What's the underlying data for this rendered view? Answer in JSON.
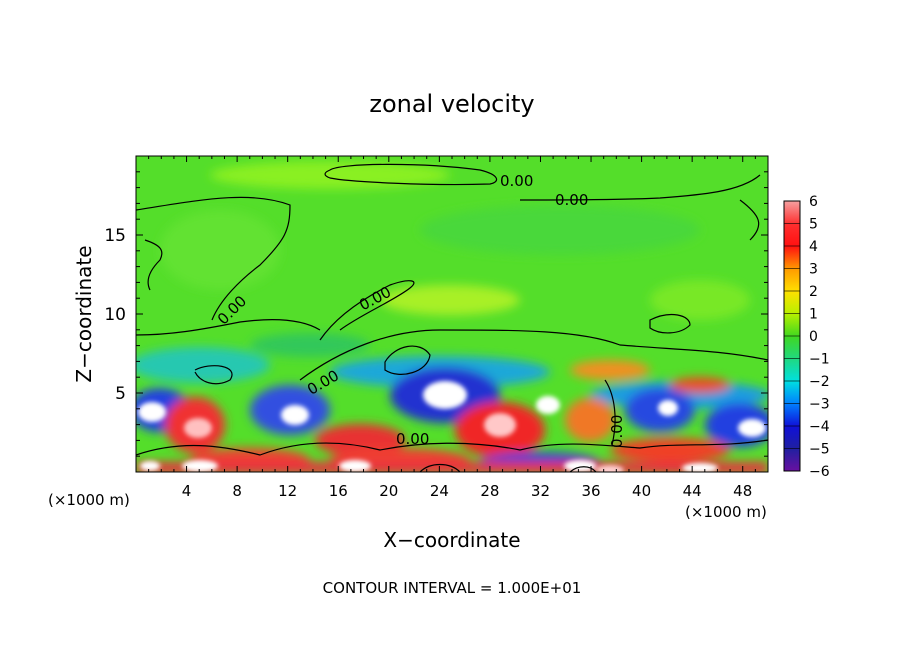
{
  "chart_data": {
    "type": "heatmap",
    "title": "zonal velocity",
    "xlabel": "X−coordinate",
    "ylabel": "Z−coordinate",
    "x_unit_left": "(×1000 m)",
    "x_unit_right": "(×1000 m)",
    "xlim": [
      0,
      50
    ],
    "ylim": [
      0,
      20
    ],
    "xticks": [
      4,
      8,
      12,
      16,
      20,
      24,
      28,
      32,
      36,
      40,
      44,
      48
    ],
    "yticks": [
      5,
      10,
      15
    ],
    "colorbar": {
      "levels": [
        6,
        5,
        4,
        3,
        2,
        1,
        0,
        -1,
        -2,
        -3,
        -4,
        -5,
        -6
      ],
      "labels": [
        "6",
        "5",
        "4",
        "3",
        "2",
        "1",
        "0",
        "−1",
        "−2",
        "−3",
        "−4",
        "−5",
        "−6"
      ]
    },
    "contour_labels": [
      "0.00",
      "0.00",
      "0.00",
      "0.00",
      "0.00",
      "0.00",
      "0.00"
    ],
    "footnote": "CONTOUR INTERVAL = 1.000E+01"
  }
}
